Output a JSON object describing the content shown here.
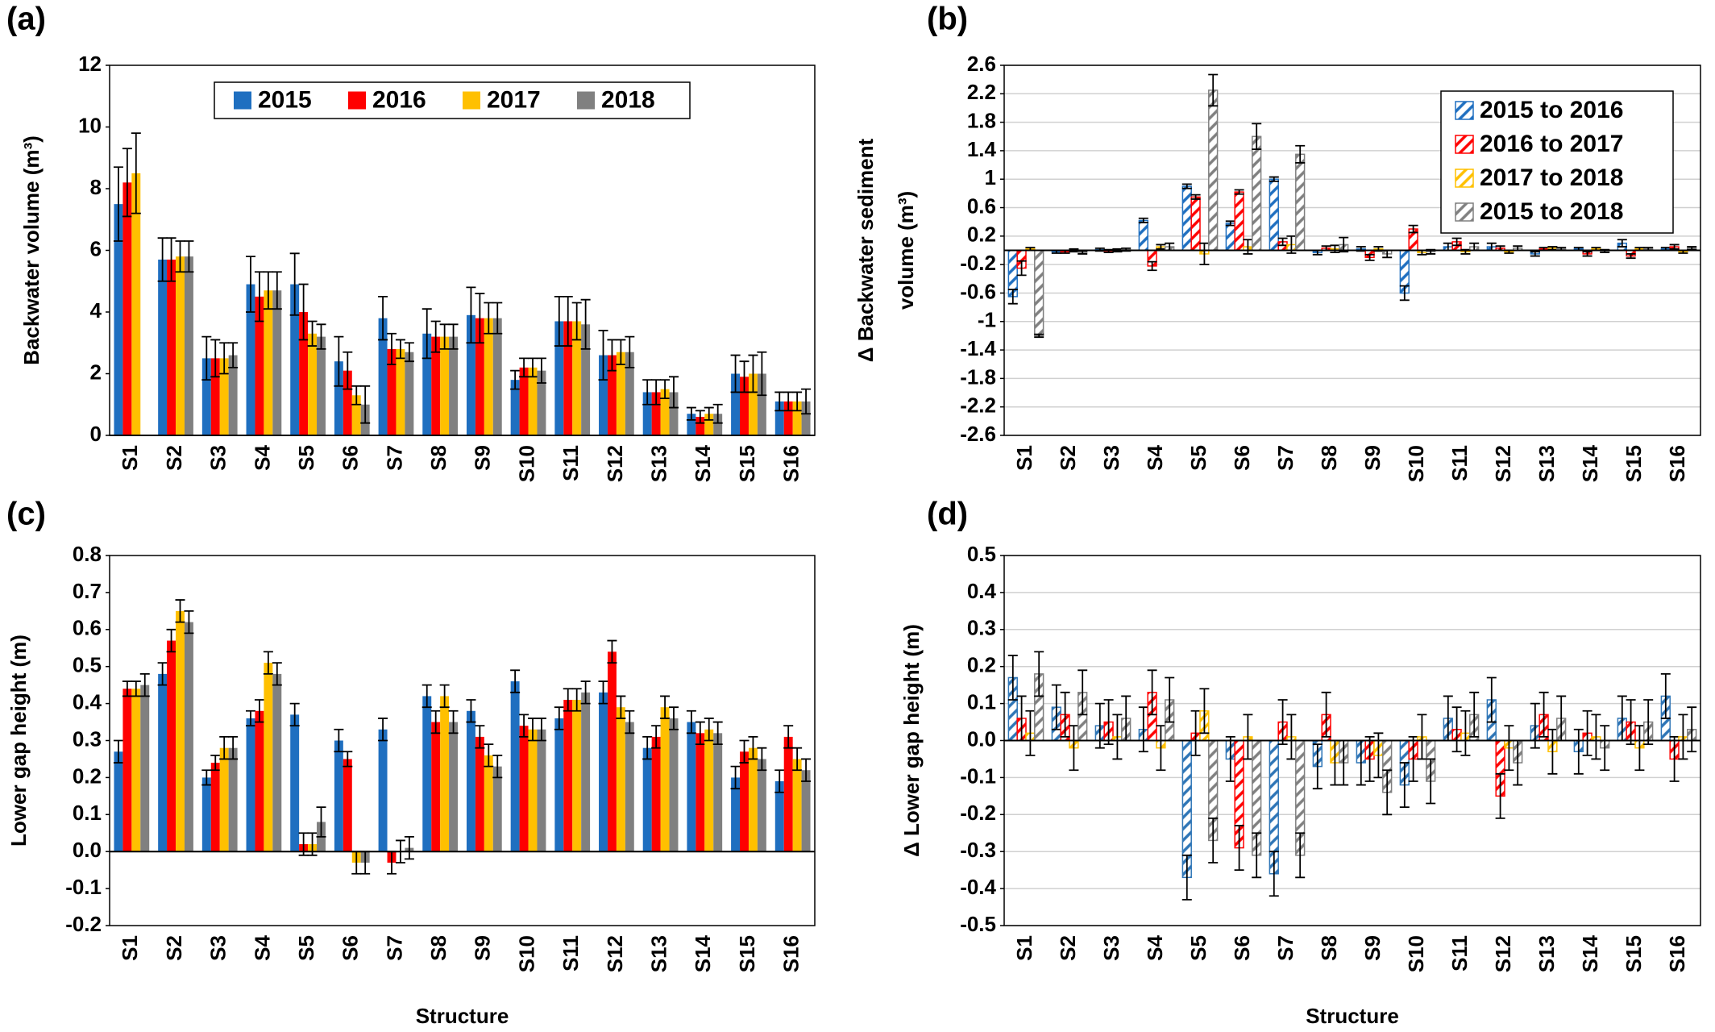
{
  "chart_data": [
    {
      "type": "bar",
      "panel_label": "(a)",
      "ylabel": [
        "Backwater volume (m³)"
      ],
      "categories": [
        "S1",
        "S2",
        "S3",
        "S4",
        "S5",
        "S6",
        "S7",
        "S8",
        "S9",
        "S10",
        "S11",
        "S12",
        "S13",
        "S14",
        "S15",
        "S16"
      ],
      "ylim": [
        0,
        12
      ],
      "yticks": [
        0,
        2,
        4,
        6,
        8,
        10,
        12
      ],
      "grid": false,
      "legend": "top",
      "pattern": "solid",
      "series": [
        {
          "name": "2015",
          "color": "#1f6fc0",
          "values": [
            7.5,
            5.7,
            2.5,
            4.9,
            4.9,
            2.4,
            3.8,
            3.3,
            3.9,
            1.8,
            3.7,
            2.6,
            1.4,
            0.7,
            2.0,
            1.1
          ],
          "errors": [
            1.2,
            0.7,
            0.7,
            0.9,
            1.0,
            0.8,
            0.7,
            0.8,
            0.9,
            0.3,
            0.8,
            0.8,
            0.4,
            0.2,
            0.6,
            0.3
          ]
        },
        {
          "name": "2016",
          "color": "#ff0000",
          "values": [
            8.2,
            5.7,
            2.5,
            4.5,
            4.0,
            2.1,
            2.8,
            3.2,
            3.8,
            2.2,
            3.7,
            2.6,
            1.4,
            0.6,
            1.9,
            1.1
          ],
          "errors": [
            1.1,
            0.7,
            0.6,
            0.8,
            0.9,
            0.6,
            0.5,
            0.5,
            0.8,
            0.3,
            0.8,
            0.5,
            0.4,
            0.2,
            0.5,
            0.3
          ]
        },
        {
          "name": "2017",
          "color": "#ffc000",
          "values": [
            8.5,
            5.8,
            2.5,
            4.7,
            3.3,
            1.3,
            2.8,
            3.2,
            3.8,
            2.2,
            3.7,
            2.7,
            1.5,
            0.7,
            2.0,
            1.1
          ],
          "errors": [
            1.3,
            0.5,
            0.5,
            0.6,
            0.4,
            0.3,
            0.3,
            0.4,
            0.5,
            0.3,
            0.6,
            0.4,
            0.3,
            0.2,
            0.6,
            0.3
          ]
        },
        {
          "name": "2018",
          "color": "#808080",
          "values": [
            null,
            5.8,
            2.6,
            4.7,
            3.2,
            1.0,
            2.7,
            3.2,
            3.8,
            2.1,
            3.6,
            2.7,
            1.4,
            0.7,
            2.0,
            1.1
          ],
          "errors": [
            null,
            0.5,
            0.4,
            0.6,
            0.4,
            0.6,
            0.3,
            0.4,
            0.5,
            0.4,
            0.8,
            0.5,
            0.5,
            0.3,
            0.7,
            0.4
          ]
        }
      ]
    },
    {
      "type": "bar",
      "panel_label": "(b)",
      "ylabel": [
        "Δ Backwater sediment",
        "volume (m³)"
      ],
      "categories": [
        "S1",
        "S2",
        "S3",
        "S4",
        "S5",
        "S6",
        "S7",
        "S8",
        "S9",
        "S10",
        "S11",
        "S12",
        "S13",
        "S14",
        "S15",
        "S16"
      ],
      "ylim": [
        -2.6,
        2.6
      ],
      "yticks": [
        -2.6,
        -2.2,
        -1.8,
        -1.4,
        -1,
        -0.6,
        -0.2,
        0.2,
        0.6,
        1,
        1.4,
        1.8,
        2.2,
        2.6
      ],
      "grid": true,
      "legend": "top-right",
      "pattern": "hatch",
      "series": [
        {
          "name": "2015 to 2016",
          "color": "#1f6fc0",
          "values": [
            -0.65,
            -0.02,
            0.01,
            0.42,
            0.9,
            0.38,
            1.0,
            -0.03,
            0.02,
            -0.6,
            0.05,
            0.05,
            -0.05,
            0.02,
            0.1,
            0.02
          ],
          "errors": [
            0.1,
            0.02,
            0.02,
            0.03,
            0.03,
            0.03,
            0.03,
            0.03,
            0.03,
            0.1,
            0.05,
            0.05,
            0.03,
            0.02,
            0.05,
            0.02
          ]
        },
        {
          "name": "2016 to 2017",
          "color": "#ff0000",
          "values": [
            -0.25,
            -0.02,
            -0.01,
            -0.22,
            0.75,
            0.82,
            0.12,
            0.03,
            -0.1,
            0.3,
            0.12,
            0.03,
            0.02,
            -0.05,
            -0.08,
            0.05
          ],
          "errors": [
            0.1,
            0.02,
            0.02,
            0.06,
            0.03,
            0.03,
            0.05,
            0.03,
            0.04,
            0.05,
            0.05,
            0.03,
            0.02,
            0.03,
            0.03,
            0.03
          ]
        },
        {
          "name": "2017 to 2018",
          "color": "#ffc000",
          "values": [
            0.02,
            0.0,
            0.0,
            0.05,
            -0.05,
            0.05,
            0.08,
            0.02,
            0.02,
            -0.03,
            -0.02,
            -0.02,
            0.03,
            0.02,
            0.02,
            -0.02
          ],
          "errors": [
            0.02,
            0.02,
            0.02,
            0.03,
            0.15,
            0.1,
            0.12,
            0.05,
            0.03,
            0.03,
            0.03,
            0.02,
            0.02,
            0.02,
            0.02,
            0.02
          ]
        },
        {
          "name": "2015 to 2018",
          "color": "#808080",
          "values": [
            -1.2,
            -0.03,
            0.01,
            0.05,
            2.25,
            1.6,
            1.35,
            0.08,
            -0.05,
            -0.02,
            0.05,
            0.03,
            0.02,
            -0.01,
            0.02,
            0.03
          ],
          "errors": [
            0.02,
            0.02,
            0.02,
            0.05,
            0.22,
            0.18,
            0.12,
            0.1,
            0.05,
            0.03,
            0.05,
            0.03,
            0.02,
            0.02,
            0.02,
            0.02
          ]
        }
      ]
    },
    {
      "type": "bar",
      "panel_label": "(c)",
      "ylabel": [
        "Lower gap height (m)"
      ],
      "xlabel": "Structure",
      "categories": [
        "S1",
        "S2",
        "S3",
        "S4",
        "S5",
        "S6",
        "S7",
        "S8",
        "S9",
        "S10",
        "S11",
        "S12",
        "S13",
        "S14",
        "S15",
        "S16"
      ],
      "ylim": [
        -0.2,
        0.8
      ],
      "yticks": [
        -0.2,
        -0.1,
        {
          "value": 0,
          "label": "0.0"
        },
        0.1,
        0.2,
        0.3,
        0.4,
        0.5,
        0.6,
        0.7,
        0.8
      ],
      "grid": false,
      "pattern": "solid",
      "series": [
        {
          "color": "#1f6fc0",
          "values": [
            0.27,
            0.48,
            0.2,
            0.36,
            0.37,
            0.3,
            0.33,
            0.42,
            0.38,
            0.46,
            0.36,
            0.43,
            0.28,
            0.35,
            0.2,
            0.19
          ],
          "errors": [
            0.03,
            0.03,
            0.02,
            0.02,
            0.03,
            0.03,
            0.03,
            0.03,
            0.03,
            0.03,
            0.03,
            0.03,
            0.03,
            0.03,
            0.03,
            0.03
          ]
        },
        {
          "color": "#ff0000",
          "values": [
            0.44,
            0.57,
            0.24,
            0.38,
            0.02,
            0.25,
            -0.03,
            0.35,
            0.31,
            0.34,
            0.41,
            0.54,
            0.31,
            0.32,
            0.27,
            0.31
          ],
          "errors": [
            0.02,
            0.03,
            0.02,
            0.03,
            0.03,
            0.02,
            0.03,
            0.03,
            0.03,
            0.03,
            0.03,
            0.03,
            0.03,
            0.03,
            0.03,
            0.03
          ]
        },
        {
          "color": "#ffc000",
          "values": [
            0.44,
            0.65,
            0.28,
            0.51,
            0.02,
            -0.03,
            0.0,
            0.42,
            0.26,
            0.33,
            0.41,
            0.39,
            0.39,
            0.33,
            0.28,
            0.25
          ],
          "errors": [
            0.02,
            0.03,
            0.03,
            0.03,
            0.03,
            0.03,
            0.03,
            0.03,
            0.03,
            0.03,
            0.03,
            0.03,
            0.03,
            0.03,
            0.03,
            0.03
          ]
        },
        {
          "color": "#808080",
          "values": [
            0.45,
            0.62,
            0.28,
            0.48,
            0.08,
            -0.03,
            0.01,
            0.35,
            0.23,
            0.33,
            0.43,
            0.35,
            0.36,
            0.32,
            0.25,
            0.22
          ],
          "errors": [
            0.03,
            0.03,
            0.03,
            0.03,
            0.04,
            0.03,
            0.03,
            0.03,
            0.03,
            0.03,
            0.03,
            0.03,
            0.03,
            0.03,
            0.03,
            0.03
          ]
        }
      ]
    },
    {
      "type": "bar",
      "panel_label": "(d)",
      "ylabel": [
        "Δ Lower gap height (m)"
      ],
      "xlabel": "Structure",
      "categories": [
        "S1",
        "S2",
        "S3",
        "S4",
        "S5",
        "S6",
        "S7",
        "S8",
        "S9",
        "S10",
        "S11",
        "S12",
        "S13",
        "S14",
        "S15",
        "S16"
      ],
      "ylim": [
        -0.5,
        0.5
      ],
      "yticks": [
        -0.5,
        -0.4,
        -0.3,
        -0.2,
        -0.1,
        {
          "value": 0,
          "label": "0.0"
        },
        0.1,
        0.2,
        0.3,
        0.4,
        0.5
      ],
      "grid": true,
      "pattern": "hatch",
      "series": [
        {
          "color": "#2e75b6",
          "values": [
            0.17,
            0.09,
            0.04,
            0.03,
            -0.37,
            -0.05,
            -0.36,
            -0.07,
            -0.06,
            -0.12,
            0.06,
            0.11,
            0.04,
            -0.03,
            0.06,
            0.12
          ],
          "errors": [
            0.06,
            0.06,
            0.06,
            0.06,
            0.06,
            0.06,
            0.06,
            0.06,
            0.06,
            0.06,
            0.06,
            0.06,
            0.06,
            0.06,
            0.06,
            0.06
          ]
        },
        {
          "color": "#ff0000",
          "values": [
            0.06,
            0.07,
            0.05,
            0.13,
            0.02,
            -0.29,
            0.05,
            0.07,
            -0.05,
            -0.05,
            0.03,
            -0.15,
            0.07,
            0.02,
            0.05,
            -0.05
          ],
          "errors": [
            0.06,
            0.06,
            0.06,
            0.06,
            0.06,
            0.06,
            0.06,
            0.06,
            0.06,
            0.06,
            0.06,
            0.06,
            0.06,
            0.06,
            0.06,
            0.06
          ]
        },
        {
          "color": "#ffc000",
          "values": [
            0.02,
            -0.02,
            0.01,
            -0.02,
            0.08,
            0.01,
            0.01,
            -0.06,
            -0.04,
            0.01,
            0.02,
            -0.02,
            -0.03,
            0.01,
            -0.02,
            0.01
          ],
          "errors": [
            0.06,
            0.06,
            0.06,
            0.06,
            0.06,
            0.06,
            0.06,
            0.06,
            0.06,
            0.06,
            0.06,
            0.06,
            0.06,
            0.06,
            0.06,
            0.06
          ]
        },
        {
          "color": "#808080",
          "values": [
            0.18,
            0.13,
            0.06,
            0.11,
            -0.27,
            -0.31,
            -0.31,
            -0.06,
            -0.14,
            -0.11,
            0.07,
            -0.06,
            0.06,
            -0.02,
            0.05,
            0.03
          ],
          "errors": [
            0.06,
            0.06,
            0.06,
            0.06,
            0.06,
            0.06,
            0.06,
            0.06,
            0.06,
            0.06,
            0.06,
            0.06,
            0.06,
            0.06,
            0.06,
            0.06
          ]
        }
      ]
    }
  ]
}
